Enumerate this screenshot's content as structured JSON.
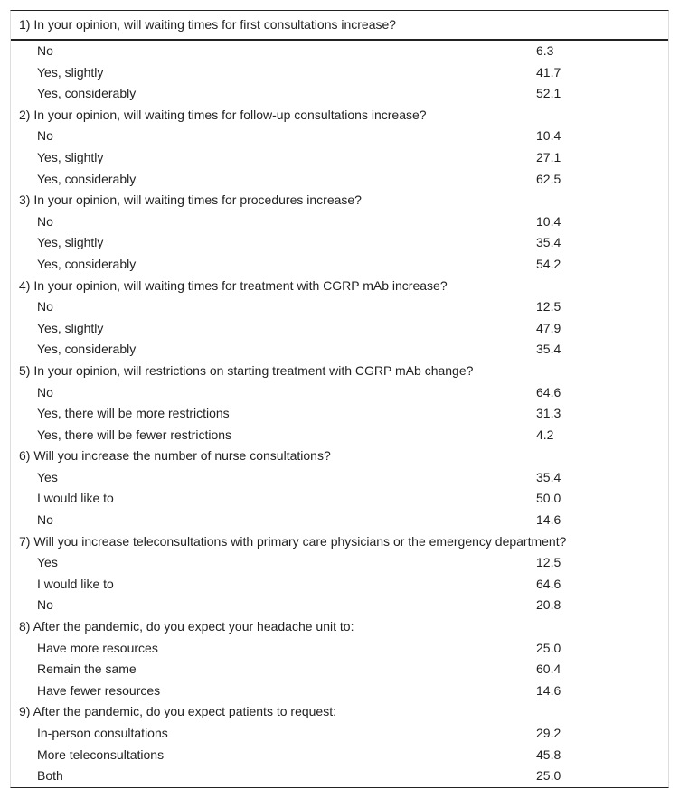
{
  "questions": [
    {
      "text": "1) In your opinion, will waiting times for first consultations increase?",
      "options": [
        {
          "label": "No",
          "value": "6.3"
        },
        {
          "label": "Yes, slightly",
          "value": "41.7"
        },
        {
          "label": "Yes, considerably",
          "value": "52.1"
        }
      ]
    },
    {
      "text": "2) In your opinion, will waiting times for follow-up consultations increase?",
      "options": [
        {
          "label": "No",
          "value": "10.4"
        },
        {
          "label": "Yes, slightly",
          "value": "27.1"
        },
        {
          "label": "Yes, considerably",
          "value": "62.5"
        }
      ]
    },
    {
      "text": "3) In your opinion, will waiting times for procedures increase?",
      "options": [
        {
          "label": "No",
          "value": "10.4"
        },
        {
          "label": "Yes, slightly",
          "value": "35.4"
        },
        {
          "label": "Yes, considerably",
          "value": "54.2"
        }
      ]
    },
    {
      "text": "4) In your opinion, will waiting times for treatment with CGRP mAb increase?",
      "options": [
        {
          "label": "No",
          "value": "12.5"
        },
        {
          "label": "Yes, slightly",
          "value": "47.9"
        },
        {
          "label": "Yes, considerably",
          "value": "35.4"
        }
      ]
    },
    {
      "text": "5) In your opinion, will restrictions on starting treatment with CGRP mAb change?",
      "options": [
        {
          "label": "No",
          "value": "64.6"
        },
        {
          "label": "Yes, there will be more restrictions",
          "value": "31.3"
        },
        {
          "label": "Yes, there will be fewer restrictions",
          "value": "4.2"
        }
      ]
    },
    {
      "text": "6) Will you increase the number of nurse consultations?",
      "options": [
        {
          "label": "Yes",
          "value": "35.4"
        },
        {
          "label": "I would like to",
          "value": "50.0"
        },
        {
          "label": "No",
          "value": "14.6"
        }
      ]
    },
    {
      "text": "7) Will you increase teleconsultations with primary care physicians or the emergency department?",
      "options": [
        {
          "label": "Yes",
          "value": "12.5"
        },
        {
          "label": "I would like to",
          "value": "64.6"
        },
        {
          "label": "No",
          "value": "20.8"
        }
      ]
    },
    {
      "text": "8) After the pandemic, do you expect your headache unit to:",
      "options": [
        {
          "label": "Have more resources",
          "value": "25.0"
        },
        {
          "label": "Remain the same",
          "value": "60.4"
        },
        {
          "label": "Have fewer resources",
          "value": "14.6"
        }
      ]
    },
    {
      "text": "9) After the pandemic, do you expect patients to request:",
      "options": [
        {
          "label": "In-person consultations",
          "value": "29.2"
        },
        {
          "label": "More teleconsultations",
          "value": "45.8"
        },
        {
          "label": "Both",
          "value": "25.0"
        }
      ]
    }
  ]
}
